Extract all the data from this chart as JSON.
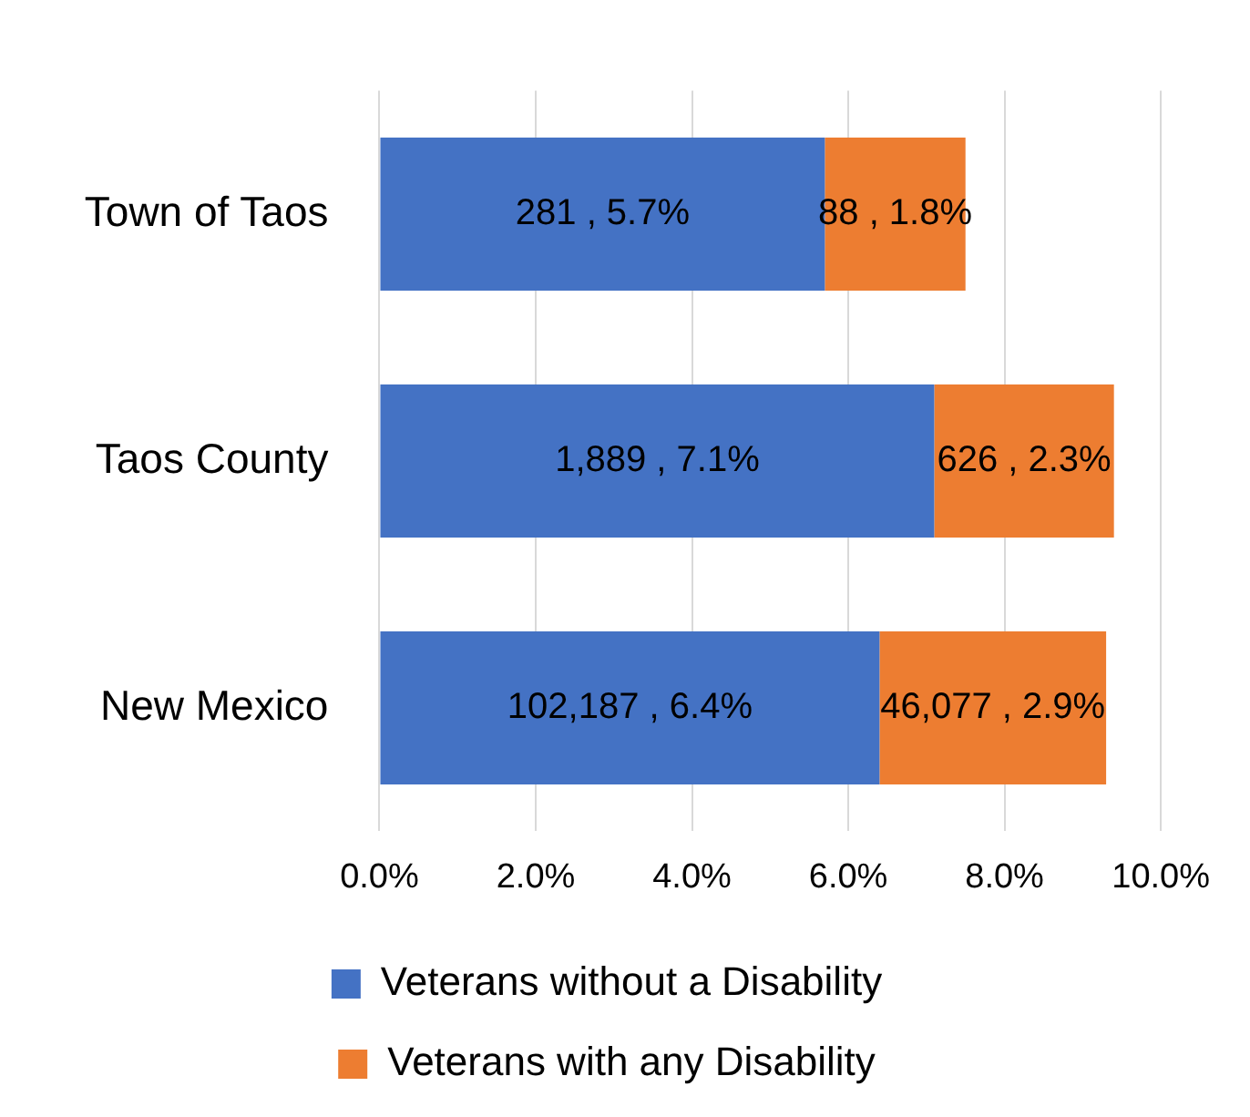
{
  "chart_data": {
    "type": "bar",
    "orientation": "horizontal",
    "stacked": true,
    "categories": [
      "Town of Taos",
      "Taos County",
      "New Mexico"
    ],
    "series": [
      {
        "name": "Veterans without a Disability",
        "color": "#4472c4",
        "values": [
          5.7,
          7.1,
          6.4
        ],
        "value_labels": [
          "281 , 5.7%",
          "1,889 , 7.1%",
          "102,187 , 6.4%"
        ]
      },
      {
        "name": "Veterans with any Disability",
        "color": "#ed7d31",
        "values": [
          1.8,
          2.3,
          2.9
        ],
        "value_labels": [
          "88 , 1.8%",
          "626 , 2.3%",
          "46,077 , 2.9%"
        ]
      }
    ],
    "xlim": [
      0,
      10
    ],
    "xticks": [
      {
        "value": 0,
        "label": "0.0%"
      },
      {
        "value": 2,
        "label": "2.0%"
      },
      {
        "value": 4,
        "label": "4.0%"
      },
      {
        "value": 6,
        "label": "6.0%"
      },
      {
        "value": 8,
        "label": "8.0%"
      },
      {
        "value": 10,
        "label": "10.0%"
      }
    ],
    "grid": "x",
    "legend": "bottom"
  }
}
